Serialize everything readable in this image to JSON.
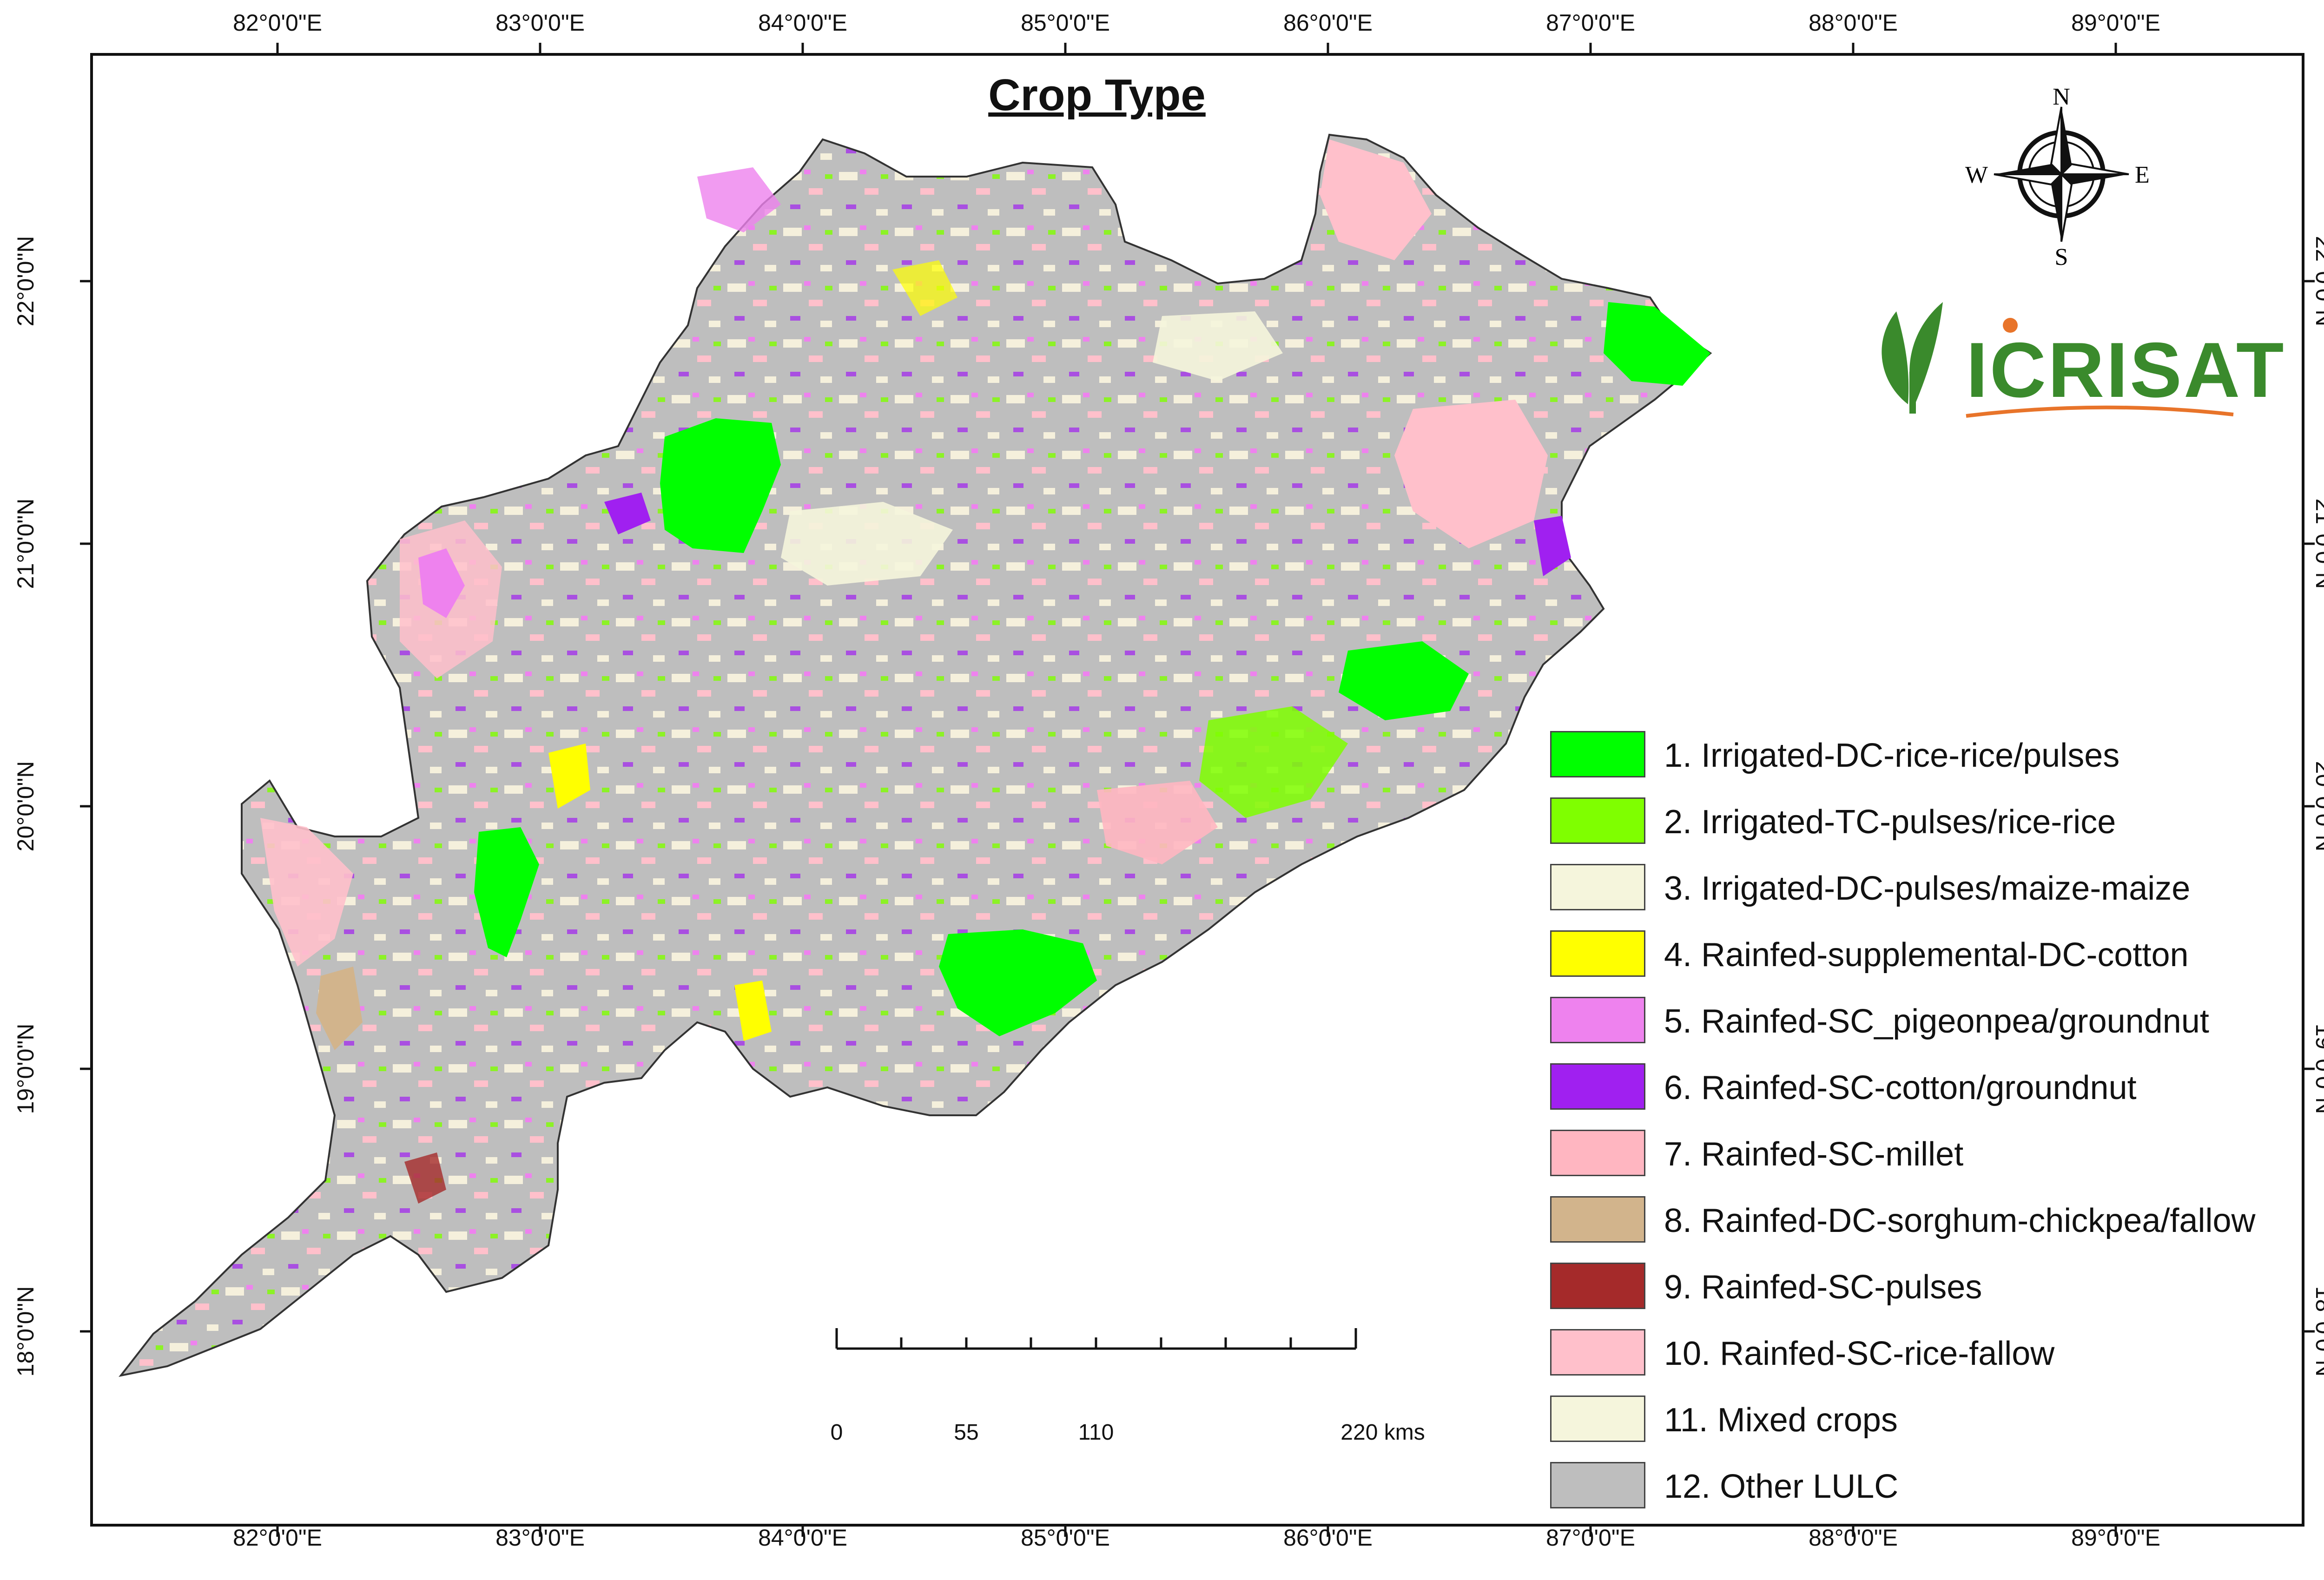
{
  "map_title": "Crop Type",
  "longitude_labels": [
    "82°0'0\"E",
    "83°0'0\"E",
    "84°0'0\"E",
    "85°0'0\"E",
    "86°0'0\"E",
    "87°0'0\"E",
    "88°0'0\"E",
    "89°0'0\"E"
  ],
  "latitude_labels": [
    "22°0'0\"N",
    "21°0'0\"N",
    "20°0'0\"N",
    "19°0'0\"N",
    "18°0'0\"N"
  ],
  "north_arrow": {
    "n": "N",
    "s": "S",
    "e": "E",
    "w": "W",
    "icon": "compass-rose-icon"
  },
  "logo": {
    "text": "ICRISAT",
    "icon": "wheat-leaf-icon",
    "color": "#3a8a2c",
    "accent_color": "#e8742a"
  },
  "legend": [
    {
      "label": "1. Irrigated-DC-rice-rice/pulses",
      "color": "#00ff00"
    },
    {
      "label": "2. Irrigated-TC-pulses/rice-rice",
      "color": "#7fff00"
    },
    {
      "label": "3. Irrigated-DC-pulses/maize-maize",
      "color": "#f5f5dc"
    },
    {
      "label": "4. Rainfed-supplemental-DC-cotton",
      "color": "#ffff00"
    },
    {
      "label": "5. Rainfed-SC_pigeonpea/groundnut",
      "color": "#ee82ee"
    },
    {
      "label": "6. Rainfed-SC-cotton/groundnut",
      "color": "#a020f0"
    },
    {
      "label": "7. Rainfed-SC-millet",
      "color": "#ffb6c1"
    },
    {
      "label": "8. Rainfed-DC-sorghum-chickpea/fallow",
      "color": "#d2b48c"
    },
    {
      "label": "9. Rainfed-SC-pulses",
      "color": "#a52a2a"
    },
    {
      "label": "10. Rainfed-SC-rice-fallow",
      "color": "#ffc0cb"
    },
    {
      "label": "11. Mixed crops",
      "color": "#f5f5dc"
    },
    {
      "label": "12. Other LULC",
      "color": "#bebebe"
    }
  ],
  "scale_bar": {
    "labels": [
      "0",
      "55",
      "110",
      "220 kms"
    ],
    "values_km": [
      0,
      55,
      110,
      220
    ]
  }
}
